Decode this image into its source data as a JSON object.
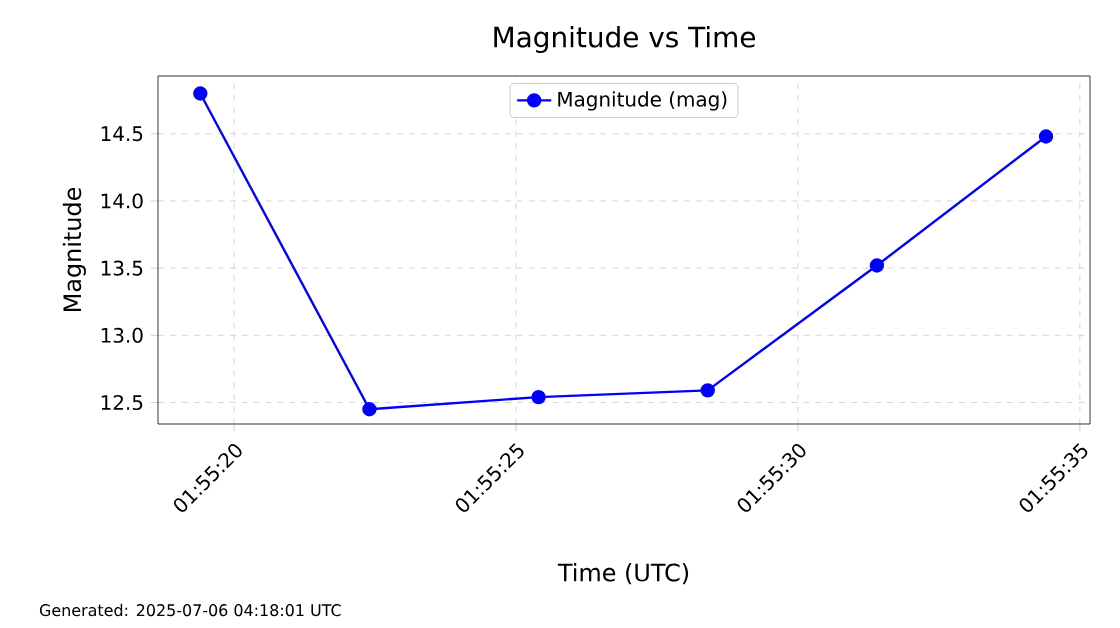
{
  "chart_data": {
    "type": "line",
    "title": "Magnitude vs Time",
    "xlabel": "Time (UTC)",
    "ylabel": "Magnitude",
    "x": [
      1.9220556,
      1.9228889,
      1.9237222,
      1.9245556,
      1.9253889,
      1.9262222
    ],
    "series": [
      {
        "name": "Magnitude (mag)",
        "color": "#0000ff",
        "values": [
          14.8,
          12.45,
          12.54,
          12.59,
          13.52,
          14.48
        ]
      }
    ],
    "xlim": [
      1.9218472,
      1.9264389
    ],
    "ylim": [
      12.34,
      14.93
    ],
    "xticks": [
      {
        "value": 1.9222222,
        "label": "01:55:20"
      },
      {
        "value": 1.9236111,
        "label": "01:55:25"
      },
      {
        "value": 1.925,
        "label": "01:55:30"
      },
      {
        "value": 1.9263889,
        "label": "01:55:35"
      }
    ],
    "yticks": [
      {
        "value": 12.5,
        "label": "12.5"
      },
      {
        "value": 13.0,
        "label": "13.0"
      },
      {
        "value": 13.5,
        "label": "13.5"
      },
      {
        "value": 14.0,
        "label": "14.0"
      },
      {
        "value": 14.5,
        "label": "14.5"
      }
    ],
    "grid": true,
    "legend": "top",
    "marker": "circle",
    "line_style": "solid",
    "annotations": [
      "Generated: 2025-07-06 04:18:01 UTC"
    ]
  }
}
